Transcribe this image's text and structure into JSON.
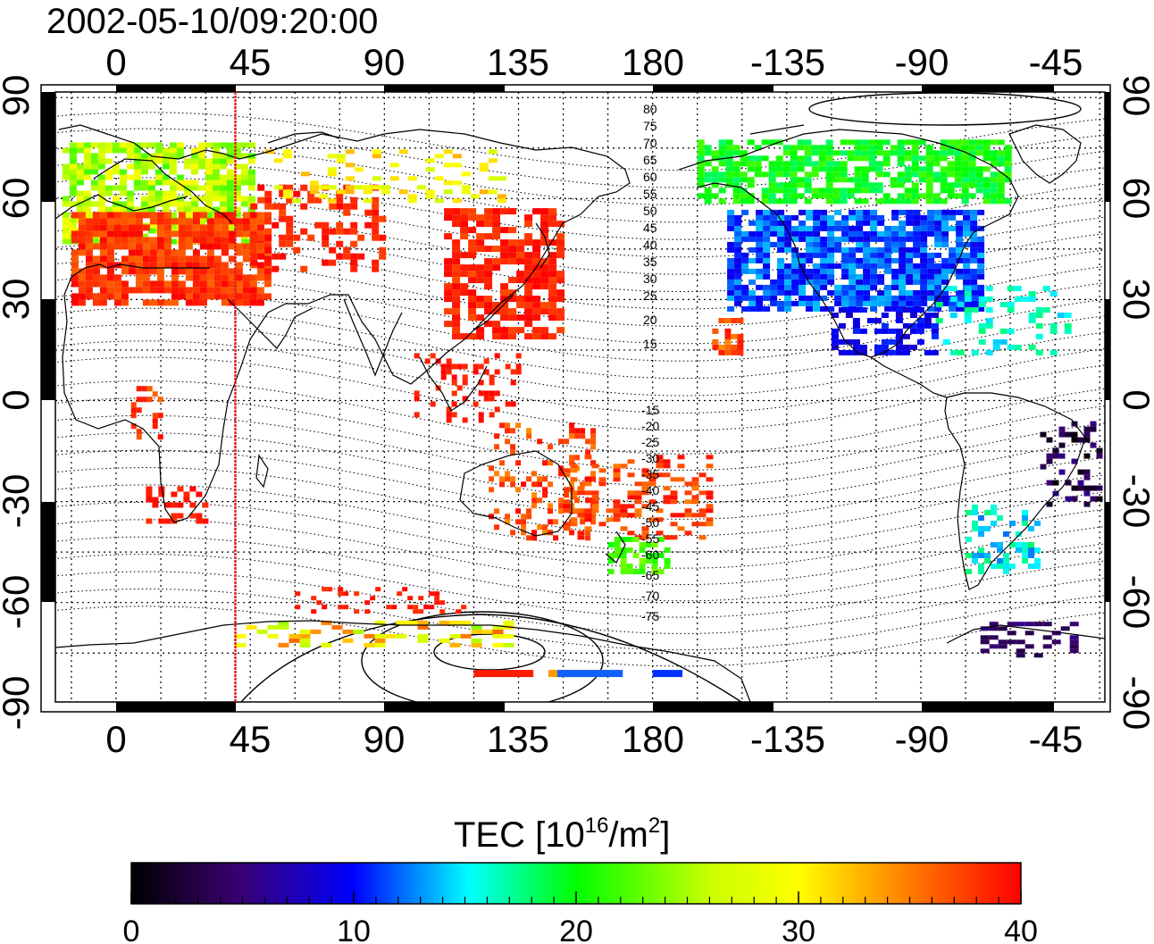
{
  "timestamp": "2002-05-10/09:20:00",
  "map": {
    "lon_ticks": [
      "0",
      "45",
      "90",
      "135",
      "180",
      "-135",
      "-90",
      "-45"
    ],
    "lat_ticks": [
      "90",
      "60",
      "30",
      "0",
      "-30",
      "-60",
      "-90"
    ],
    "contour_labels_north": [
      "80",
      "75",
      "70",
      "65",
      "60",
      "55",
      "50",
      "45",
      "40",
      "35",
      "30",
      "25",
      "20",
      "15"
    ],
    "contour_labels_south": [
      "-15",
      "-20",
      "-25",
      "-30",
      "-35",
      "-40",
      "-45",
      "-50",
      "-55",
      "-60",
      "-65",
      "-70",
      "-75"
    ],
    "terminator_longitude": 40,
    "terminator_color": "#e02020"
  },
  "colorbar": {
    "title_main": "TEC  [10",
    "title_exp1": "16",
    "title_mid": "/m",
    "title_exp2": "2",
    "title_end": "]",
    "ticks": [
      "0",
      "10",
      "20",
      "30",
      "40"
    ],
    "range": [
      0,
      40
    ],
    "colors": [
      "#000000",
      "#3a0070",
      "#0000ff",
      "#00ffff",
      "#00ff00",
      "#ffff00",
      "#ff8000",
      "#ff0000"
    ]
  }
}
